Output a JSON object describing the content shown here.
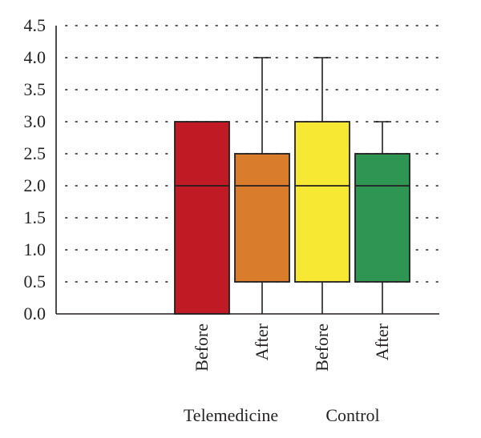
{
  "chart_data": {
    "type": "box",
    "ylim": [
      0,
      4.5
    ],
    "yticks": [
      "0.0",
      "0.5",
      "1.0",
      "1.5",
      "2.0",
      "2.5",
      "3.0",
      "3.5",
      "4.0",
      "4.5"
    ],
    "grid": true,
    "groups": [
      {
        "label": "Telemedicine",
        "boxes": [
          {
            "label": "Before",
            "min": 0.0,
            "q1": 0.0,
            "median": 2.0,
            "q3": 3.0,
            "max": 3.0,
            "color": "#c01a24"
          },
          {
            "label": "After",
            "min": 0.0,
            "q1": 0.5,
            "median": 2.0,
            "q3": 2.5,
            "max": 4.0,
            "color": "#d97c2c"
          }
        ]
      },
      {
        "label": "Control",
        "boxes": [
          {
            "label": "Before",
            "min": 0.0,
            "q1": 0.5,
            "median": 2.0,
            "q3": 3.0,
            "max": 4.0,
            "color": "#f7e834"
          },
          {
            "label": "After",
            "min": 0.0,
            "q1": 0.5,
            "median": 2.0,
            "q3": 2.5,
            "max": 3.0,
            "color": "#2f9553"
          }
        ]
      }
    ]
  }
}
